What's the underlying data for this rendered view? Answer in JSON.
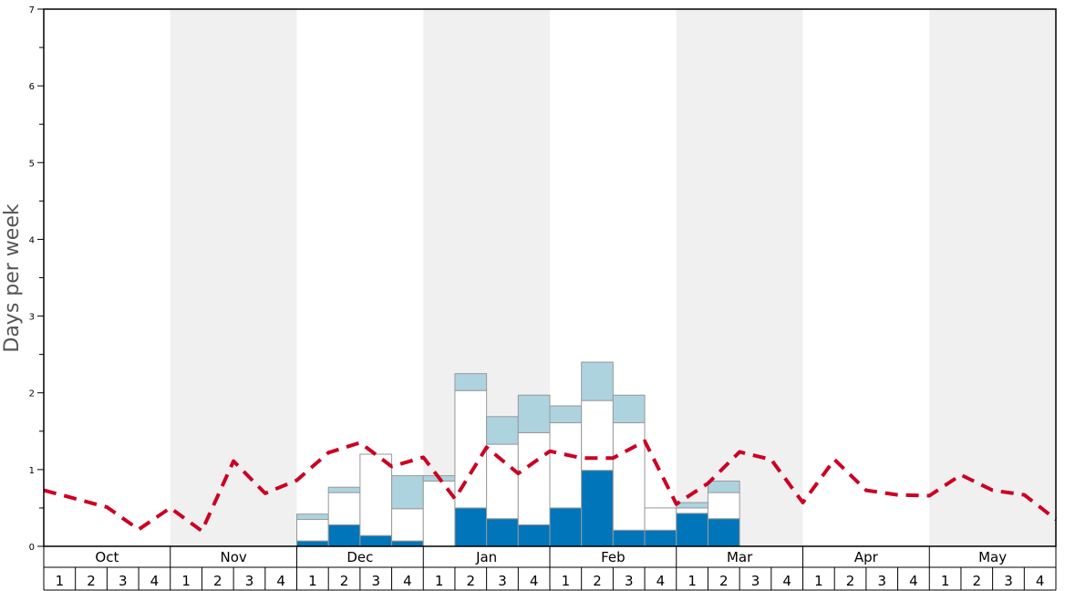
{
  "chart_data": {
    "type": "bar",
    "ylabel": "Days per week",
    "ylim": [
      0,
      7
    ],
    "y_ticks": [
      "0",
      "1",
      "2",
      "3",
      "4",
      "5",
      "6",
      "7"
    ],
    "months": [
      "Oct",
      "Nov",
      "Dec",
      "Jan",
      "Feb",
      "Mar",
      "Apr",
      "May"
    ],
    "week_labels": [
      "1",
      "2",
      "3",
      "4"
    ],
    "stacked": true,
    "colors": {
      "dark": "#0075b9",
      "middle": "#ffffff",
      "light": "#add3df",
      "line": "#cc0022",
      "band": "#f0f0f0"
    },
    "bars": [
      {
        "week": 8,
        "dark": 0.07,
        "middle": 0.28,
        "light": 0.07
      },
      {
        "week": 9,
        "dark": 0.28,
        "middle": 0.42,
        "light": 0.07
      },
      {
        "week": 10,
        "dark": 0.14,
        "middle": 1.06,
        "light": 0.0
      },
      {
        "week": 11,
        "dark": 0.07,
        "middle": 0.42,
        "light": 0.43
      },
      {
        "week": 12,
        "dark": 0.0,
        "middle": 0.85,
        "light": 0.07
      },
      {
        "week": 13,
        "dark": 0.5,
        "middle": 1.53,
        "light": 0.22
      },
      {
        "week": 14,
        "dark": 0.36,
        "middle": 0.97,
        "light": 0.36
      },
      {
        "week": 15,
        "dark": 0.28,
        "middle": 1.2,
        "light": 0.49
      },
      {
        "week": 16,
        "dark": 0.5,
        "middle": 1.11,
        "light": 0.22
      },
      {
        "week": 17,
        "dark": 0.99,
        "middle": 0.91,
        "light": 0.5
      },
      {
        "week": 18,
        "dark": 0.21,
        "middle": 1.4,
        "light": 0.36
      },
      {
        "week": 19,
        "dark": 0.21,
        "middle": 0.29,
        "light": 0.0
      },
      {
        "week": 20,
        "dark": 0.43,
        "middle": 0.07,
        "light": 0.07
      },
      {
        "week": 21,
        "dark": 0.36,
        "middle": 0.34,
        "light": 0.15
      }
    ],
    "average_line": [
      0.73,
      0.62,
      0.51,
      0.22,
      0.5,
      0.2,
      1.11,
      0.69,
      0.86,
      1.22,
      1.35,
      1.04,
      1.16,
      0.62,
      1.29,
      0.95,
      1.24,
      1.15,
      1.15,
      1.37,
      0.55,
      0.82,
      1.23,
      1.13,
      0.57,
      1.13,
      0.73,
      0.67,
      0.66,
      0.93,
      0.73,
      0.67,
      0.35
    ]
  }
}
